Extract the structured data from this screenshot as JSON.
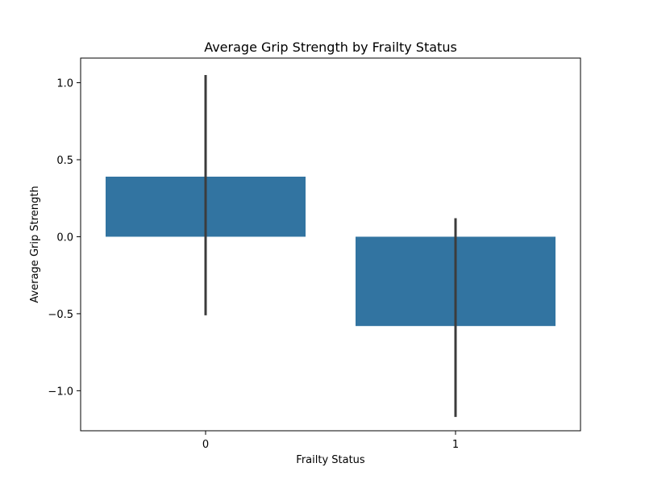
{
  "chart_data": {
    "type": "bar",
    "title": "Average Grip Strength by Frailty Status",
    "xlabel": "Frailty Status",
    "ylabel": "Average Grip Strength",
    "categories": [
      "0",
      "1"
    ],
    "values": [
      0.39,
      -0.58
    ],
    "error_low": [
      -0.51,
      -1.17
    ],
    "error_high": [
      1.05,
      0.12
    ],
    "ylim": [
      -1.26,
      1.16
    ],
    "yticks": [
      -1.0,
      -0.5,
      0.0,
      0.5,
      1.0
    ],
    "ytick_labels": [
      "−1.0",
      "−0.5",
      "0.0",
      "0.5",
      "1.0"
    ],
    "grid": false,
    "colors": {
      "bar": "#3274a1",
      "error_bar": "#3c3c3c",
      "axis": "#000000"
    }
  }
}
